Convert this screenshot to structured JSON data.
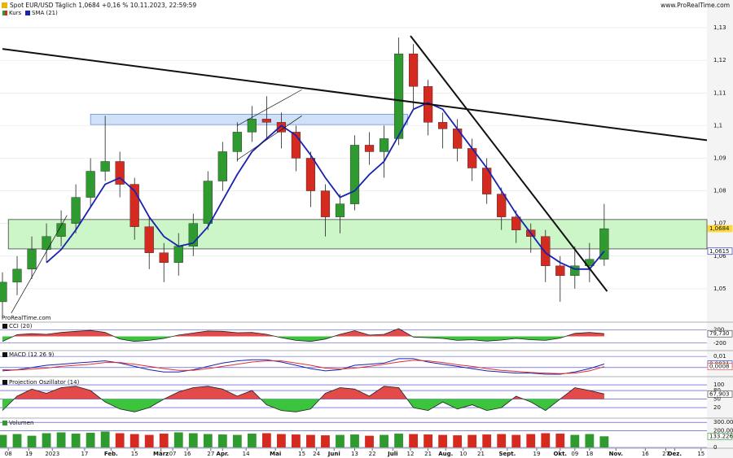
{
  "chart_data": [
    {
      "type": "candlestick",
      "title": "Spot EUR/USD Täglich 1,0684 +0,16 % 10.11.2023, 22:59:59",
      "source": "www.ProRealTime.com",
      "watermark": "ProRealTime.com",
      "x": [
        0,
        5,
        10,
        15,
        20,
        25,
        30,
        35,
        40,
        45,
        50,
        55,
        60,
        65,
        70,
        75,
        80,
        85,
        90,
        95,
        100,
        105,
        110,
        115,
        120,
        125,
        130,
        135,
        140,
        145,
        150,
        155,
        160,
        165,
        170,
        175,
        180,
        185,
        190,
        195,
        200,
        205
      ],
      "xlim": [
        0,
        240
      ],
      "xticks": [
        {
          "value": 2,
          "label": "08"
        },
        {
          "value": 9,
          "label": "19"
        },
        {
          "value": 17,
          "label": "2023"
        },
        {
          "value": 28,
          "label": "17"
        },
        {
          "value": 37,
          "label": "Feb."
        },
        {
          "value": 45,
          "label": "15"
        },
        {
          "value": 54,
          "label": "März"
        },
        {
          "value": 58,
          "label": "07"
        },
        {
          "value": 63,
          "label": "16"
        },
        {
          "value": 71,
          "label": "27"
        },
        {
          "value": 75,
          "label": "Apr."
        },
        {
          "value": 83,
          "label": "14"
        },
        {
          "value": 93,
          "label": "Mai"
        },
        {
          "value": 102,
          "label": "15"
        },
        {
          "value": 107,
          "label": "24"
        },
        {
          "value": 113,
          "label": "Juni"
        },
        {
          "value": 120,
          "label": "13"
        },
        {
          "value": 126,
          "label": "22"
        },
        {
          "value": 133,
          "label": "Juli"
        },
        {
          "value": 139,
          "label": "12"
        },
        {
          "value": 145,
          "label": "21"
        },
        {
          "value": 151,
          "label": "Aug."
        },
        {
          "value": 157,
          "label": "10"
        },
        {
          "value": 163,
          "label": "21"
        },
        {
          "value": 172,
          "label": "Sept."
        },
        {
          "value": 182,
          "label": "19"
        },
        {
          "value": 190,
          "label": "Okt."
        },
        {
          "value": 195,
          "label": "09"
        },
        {
          "value": 200,
          "label": "18"
        },
        {
          "value": 209,
          "label": "Nov."
        },
        {
          "value": 219,
          "label": "16"
        },
        {
          "value": 226,
          "label": "27"
        },
        {
          "value": 229,
          "label": "Dez."
        },
        {
          "value": 238,
          "label": "15"
        }
      ],
      "ylim": [
        1.04,
        1.135
      ],
      "yticks": [
        {
          "value": 1.13,
          "label": "1,13"
        },
        {
          "value": 1.12,
          "label": "1,12"
        },
        {
          "value": 1.11,
          "label": "1,11"
        },
        {
          "value": 1.1,
          "label": "1,1"
        },
        {
          "value": 1.09,
          "label": "1,09"
        },
        {
          "value": 1.08,
          "label": "1,08"
        },
        {
          "value": 1.07,
          "label": "1,07"
        },
        {
          "value": 1.06,
          "label": "1,06"
        },
        {
          "value": 1.05,
          "label": "1,05"
        }
      ],
      "candles": {
        "name": "Kurs",
        "color_up": "#2f9a2f",
        "color_down": "#d42a20",
        "open": [
          1.046,
          1.052,
          1.056,
          1.062,
          1.066,
          1.07,
          1.078,
          1.086,
          1.089,
          1.082,
          1.069,
          1.061,
          1.058,
          1.063,
          1.07,
          1.083,
          1.092,
          1.098,
          1.102,
          1.101,
          1.098,
          1.09,
          1.08,
          1.072,
          1.076,
          1.094,
          1.092,
          1.096,
          1.122,
          1.112,
          1.101,
          1.099,
          1.093,
          1.087,
          1.079,
          1.072,
          1.068,
          1.066,
          1.057,
          1.054,
          1.057,
          1.059
        ],
        "high": [
          1.055,
          1.06,
          1.066,
          1.07,
          1.074,
          1.082,
          1.09,
          1.103,
          1.092,
          1.084,
          1.072,
          1.064,
          1.067,
          1.073,
          1.086,
          1.095,
          1.101,
          1.106,
          1.109,
          1.104,
          1.1,
          1.092,
          1.082,
          1.079,
          1.097,
          1.098,
          1.1,
          1.127,
          1.125,
          1.114,
          1.104,
          1.102,
          1.096,
          1.09,
          1.081,
          1.074,
          1.07,
          1.068,
          1.06,
          1.063,
          1.064,
          1.076
        ],
        "low": [
          1.041,
          1.048,
          1.053,
          1.058,
          1.063,
          1.067,
          1.075,
          1.083,
          1.078,
          1.065,
          1.056,
          1.052,
          1.054,
          1.06,
          1.068,
          1.08,
          1.089,
          1.095,
          1.096,
          1.093,
          1.086,
          1.075,
          1.066,
          1.067,
          1.074,
          1.088,
          1.084,
          1.094,
          1.105,
          1.097,
          1.093,
          1.089,
          1.083,
          1.076,
          1.068,
          1.064,
          1.061,
          1.052,
          1.046,
          1.05,
          1.052,
          1.057
        ],
        "close": [
          1.052,
          1.056,
          1.062,
          1.066,
          1.07,
          1.078,
          1.086,
          1.089,
          1.082,
          1.069,
          1.061,
          1.058,
          1.063,
          1.07,
          1.083,
          1.092,
          1.098,
          1.102,
          1.101,
          1.098,
          1.09,
          1.08,
          1.072,
          1.076,
          1.094,
          1.092,
          1.096,
          1.122,
          1.112,
          1.101,
          1.099,
          1.093,
          1.087,
          1.079,
          1.072,
          1.068,
          1.066,
          1.057,
          1.054,
          1.057,
          1.059,
          1.0684
        ]
      },
      "series": [
        {
          "name": "SMA (21)",
          "color": "#1a22b0",
          "values": [
            null,
            null,
            null,
            1.058,
            1.062,
            1.068,
            1.075,
            1.082,
            1.084,
            1.08,
            1.072,
            1.066,
            1.063,
            1.064,
            1.069,
            1.077,
            1.085,
            1.092,
            1.096,
            1.1,
            1.097,
            1.091,
            1.084,
            1.078,
            1.08,
            1.085,
            1.089,
            1.097,
            1.105,
            1.107,
            1.105,
            1.099,
            1.093,
            1.087,
            1.08,
            1.073,
            1.067,
            1.061,
            1.058,
            1.056,
            1.056,
            1.0615
          ]
        }
      ],
      "last_labels": [
        {
          "value": 1.0684,
          "label": "1,0684",
          "color": "#ffd83a"
        },
        {
          "value": 1.0615,
          "label": "1,0615",
          "color": "#1a22b0"
        }
      ],
      "zones": [
        {
          "x1": 2,
          "x2": 240,
          "y1": 1.0622,
          "y2": 1.0712,
          "color": "#ccf5c8",
          "border": "#2a2a2a"
        },
        {
          "x1": 30,
          "x2": 138,
          "y1": 1.1003,
          "y2": 1.1035,
          "color": "#cfe0f7",
          "border": "#5a8ad0"
        }
      ],
      "trendlines": [
        {
          "x1": 0,
          "y1": 1.1235,
          "x2": 240,
          "y2": 1.0955,
          "width": 2
        },
        {
          "x1": 139,
          "y1": 1.1275,
          "x2": 206,
          "y2": 1.0492,
          "width": 2
        },
        {
          "x1": 3,
          "y1": 1.0425,
          "x2": 22,
          "y2": 1.0725,
          "width": 0.7
        },
        {
          "x1": 80,
          "y1": 1.0895,
          "x2": 102,
          "y2": 1.103,
          "width": 0.7
        },
        {
          "x1": 80,
          "y1": 1.1,
          "x2": 102,
          "y2": 1.111,
          "width": 0.7
        }
      ],
      "grid": true
    },
    {
      "type": "oscillator",
      "title": "CCI (20)",
      "ylim": [
        -400,
        400
      ],
      "yticks": [
        200,
        -200
      ],
      "values": [
        -150,
        50,
        80,
        60,
        120,
        150,
        180,
        120,
        -80,
        -150,
        -120,
        -60,
        40,
        100,
        160,
        150,
        110,
        120,
        60,
        -40,
        -120,
        -150,
        -80,
        60,
        170,
        40,
        60,
        230,
        -20,
        -40,
        -60,
        -120,
        -100,
        -140,
        -110,
        -60,
        -100,
        -120,
        -50,
        90,
        120,
        79.73
      ],
      "color": "#222",
      "fill_up": "#e34a4a",
      "fill_down": "#3cc43c",
      "last_labels": [
        {
          "value": 79.73,
          "label": "79,730",
          "color": "#333"
        }
      ]
    },
    {
      "type": "lines",
      "title": "MACD (12 26 9)",
      "ylim": [
        -0.0075,
        0.0145
      ],
      "yticks": [
        {
          "value": 0.01,
          "label": "0,01"
        },
        0
      ],
      "series": [
        {
          "color": "#1a22b0",
          "values": [
            -0.003,
            -0.002,
            0.0,
            0.002,
            0.003,
            0.004,
            0.005,
            0.006,
            0.004,
            0.001,
            -0.002,
            -0.004,
            -0.004,
            -0.002,
            0.001,
            0.004,
            0.006,
            0.007,
            0.007,
            0.005,
            0.002,
            -0.001,
            -0.003,
            -0.002,
            0.002,
            0.003,
            0.004,
            0.008,
            0.008,
            0.005,
            0.003,
            0.001,
            -0.001,
            -0.003,
            -0.004,
            -0.005,
            -0.005,
            -0.006,
            -0.006,
            -0.004,
            -0.001,
            0.0031
          ]
        },
        {
          "color": "#e03030",
          "values": [
            -0.002,
            -0.0022,
            -0.0015,
            -0.0005,
            0.001,
            0.002,
            0.003,
            0.0045,
            0.0045,
            0.003,
            0.001,
            -0.001,
            -0.0025,
            -0.0025,
            -0.001,
            0.001,
            0.003,
            0.005,
            0.006,
            0.006,
            0.004,
            0.002,
            -0.0005,
            -0.0015,
            -0.0005,
            0.001,
            0.003,
            0.005,
            0.0065,
            0.006,
            0.0045,
            0.0025,
            0.001,
            -0.001,
            -0.0025,
            -0.0035,
            -0.0045,
            -0.005,
            -0.0055,
            -0.005,
            -0.003,
            0.0008
          ]
        }
      ],
      "last_labels": [
        {
          "value": 0.0031,
          "label": "0,0031",
          "color": "#1a22b0"
        },
        {
          "value": 0.0008,
          "label": "0,0008",
          "color": "#e03030"
        }
      ]
    },
    {
      "type": "oscillator",
      "title": "Projection Oszillator (14)",
      "ylim": [
        -14,
        120
      ],
      "yticks": [
        100,
        80,
        50,
        20
      ],
      "values": [
        10,
        60,
        85,
        70,
        90,
        95,
        80,
        40,
        15,
        5,
        20,
        50,
        75,
        90,
        95,
        85,
        60,
        80,
        30,
        10,
        5,
        15,
        70,
        90,
        85,
        60,
        95,
        90,
        20,
        10,
        40,
        15,
        30,
        10,
        20,
        60,
        40,
        10,
        50,
        90,
        80,
        67.903
      ],
      "color": "#222",
      "fill_up": "#e34a4a",
      "fill_down": "#3cc43c",
      "last_labels": [
        {
          "value": 67.903,
          "label": "67,903",
          "color": "#333"
        }
      ]
    },
    {
      "type": "bar",
      "title": "Volumen",
      "ylim": [
        0,
        331000
      ],
      "yticks": [
        {
          "value": 300000,
          "label": "300.000"
        },
        {
          "value": 200000,
          "label": "200.000"
        },
        0
      ],
      "values": [
        150000,
        160000,
        140000,
        170000,
        180000,
        165000,
        175000,
        190000,
        170000,
        160000,
        150000,
        165000,
        180000,
        170000,
        160000,
        155000,
        150000,
        165000,
        170000,
        160000,
        155000,
        150000,
        145000,
        150000,
        155000,
        140000,
        150000,
        165000,
        160000,
        155000,
        150000,
        145000,
        150000,
        155000,
        160000,
        150000,
        160000,
        170000,
        165000,
        150000,
        160000,
        133226
      ],
      "last_labels": [
        {
          "value": 133226,
          "label": "133.226",
          "color": "#2f9a2f"
        }
      ]
    }
  ]
}
